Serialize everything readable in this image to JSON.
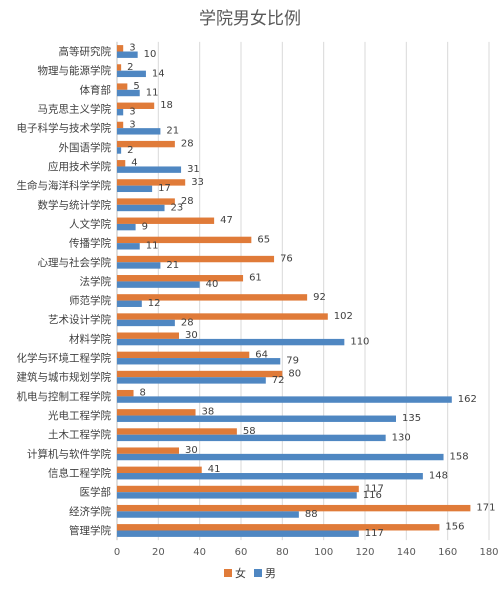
{
  "chart_data": {
    "type": "bar",
    "orientation": "horizontal",
    "title": "学院男女比例",
    "xlabel": "",
    "ylabel": "",
    "xlim": [
      0,
      180
    ],
    "xticks": [
      0,
      20,
      40,
      60,
      80,
      100,
      120,
      140,
      160,
      180
    ],
    "grid": true,
    "legend_position": "bottom",
    "categories": [
      "高等研究院",
      "物理与能源学院",
      "体育部",
      "马克思主义学院",
      "电子科学与技术学院",
      "外国语学院",
      "应用技术学院",
      "生命与海洋科学学院",
      "数学与统计学院",
      "人文学院",
      "传播学院",
      "心理与社会学院",
      "法学院",
      "师范学院",
      "艺术设计学院",
      "材料学院",
      "化学与环境工程学院",
      "建筑与城市规划学院",
      "机电与控制工程学院",
      "光电工程学院",
      "土木工程学院",
      "计算机与软件学院",
      "信息工程学院",
      "医学部",
      "经济学院",
      "管理学院"
    ],
    "series": [
      {
        "name": "女",
        "color": "#e07b39",
        "values": [
          3,
          2,
          5,
          18,
          3,
          28,
          4,
          33,
          28,
          47,
          65,
          76,
          61,
          92,
          102,
          30,
          64,
          80,
          8,
          38,
          58,
          30,
          41,
          117,
          171,
          156
        ]
      },
      {
        "name": "男",
        "color": "#4f87c2",
        "values": [
          10,
          14,
          11,
          3,
          21,
          2,
          31,
          17,
          23,
          9,
          11,
          21,
          40,
          12,
          28,
          110,
          79,
          72,
          162,
          135,
          130,
          158,
          148,
          116,
          88,
          117
        ]
      }
    ]
  }
}
